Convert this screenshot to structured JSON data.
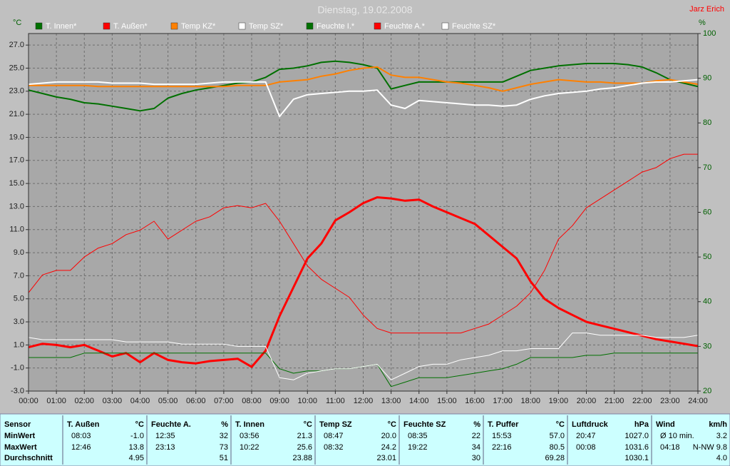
{
  "chart_data": {
    "type": "line",
    "title": "Dienstag, 19.02.2008",
    "annotation": "Jarz Erich",
    "y_label": "°C",
    "y2_label": "%",
    "x": [
      0,
      0.5,
      1,
      1.5,
      2,
      2.5,
      3,
      3.5,
      4,
      4.5,
      5,
      5.5,
      6,
      6.5,
      7,
      7.5,
      8,
      8.5,
      9,
      9.5,
      10,
      10.5,
      11,
      11.5,
      12,
      12.5,
      13,
      13.5,
      14,
      14.5,
      15,
      15.5,
      16,
      16.5,
      17,
      17.5,
      18,
      18.5,
      19,
      19.5,
      20,
      20.5,
      21,
      21.5,
      22,
      22.5,
      23,
      23.5,
      24
    ],
    "xlim": [
      0,
      24
    ],
    "xticks": [
      {
        "value": 0,
        "label": "00:00"
      },
      {
        "value": 1,
        "label": "01:00"
      },
      {
        "value": 2,
        "label": "02:00"
      },
      {
        "value": 3,
        "label": "03:00"
      },
      {
        "value": 4,
        "label": "04:00"
      },
      {
        "value": 5,
        "label": "05:00"
      },
      {
        "value": 6,
        "label": "06:00"
      },
      {
        "value": 7,
        "label": "07:00"
      },
      {
        "value": 8,
        "label": "08:00"
      },
      {
        "value": 9,
        "label": "09:00"
      },
      {
        "value": 10,
        "label": "10:00"
      },
      {
        "value": 11,
        "label": "11:00"
      },
      {
        "value": 12,
        "label": "12:00"
      },
      {
        "value": 13,
        "label": "13:00"
      },
      {
        "value": 14,
        "label": "14:00"
      },
      {
        "value": 15,
        "label": "15:00"
      },
      {
        "value": 16,
        "label": "16:00"
      },
      {
        "value": 17,
        "label": "17:00"
      },
      {
        "value": 18,
        "label": "18:00"
      },
      {
        "value": 19,
        "label": "19:00"
      },
      {
        "value": 20,
        "label": "20:00"
      },
      {
        "value": 21,
        "label": "21:00"
      },
      {
        "value": 22,
        "label": "22:00"
      },
      {
        "value": 23,
        "label": "23:00"
      },
      {
        "value": 24,
        "label": "24:00"
      }
    ],
    "ylim": [
      -3,
      28
    ],
    "yticks": [
      {
        "value": 27,
        "label": "27.0"
      },
      {
        "value": 25,
        "label": "25.0"
      },
      {
        "value": 23,
        "label": "23.0"
      },
      {
        "value": 21,
        "label": "21.0"
      },
      {
        "value": 19,
        "label": "19.0"
      },
      {
        "value": 17,
        "label": "17.0"
      },
      {
        "value": 15,
        "label": "15.0"
      },
      {
        "value": 13,
        "label": "13.0"
      },
      {
        "value": 11,
        "label": "11.0"
      },
      {
        "value": 9,
        "label": "9.0"
      },
      {
        "value": 7,
        "label": "7.0"
      },
      {
        "value": 5,
        "label": "5.0"
      },
      {
        "value": 3,
        "label": "3.0"
      },
      {
        "value": 1,
        "label": "1.0"
      },
      {
        "value": -1,
        "label": "-1.0"
      },
      {
        "value": -3,
        "label": "-3.0"
      }
    ],
    "y2lim": [
      20,
      100
    ],
    "y2ticks": [
      100,
      90,
      80,
      70,
      60,
      50,
      40,
      30,
      20
    ],
    "grid": true,
    "series": [
      {
        "name": "T. Innen*",
        "color": "#007000",
        "line_width": 2,
        "values": [
          23.1,
          22.8,
          22.5,
          22.3,
          22.0,
          21.9,
          21.7,
          21.5,
          21.3,
          21.5,
          22.4,
          22.8,
          23.1,
          23.3,
          23.5,
          23.7,
          23.8,
          24.2,
          24.9,
          25.0,
          25.2,
          25.5,
          25.6,
          25.5,
          25.3,
          25.0,
          23.2,
          23.5,
          23.8,
          23.8,
          23.8,
          23.8,
          23.8,
          23.8,
          23.8,
          24.3,
          24.8,
          25.0,
          25.2,
          25.3,
          25.4,
          25.4,
          25.4,
          25.3,
          25.1,
          24.6,
          24.0,
          23.7,
          23.4
        ]
      },
      {
        "name": "T. Außen*",
        "color": "#ff0000",
        "line_width": 3,
        "values": [
          0.8,
          1.1,
          1.0,
          0.8,
          1.0,
          0.5,
          0.0,
          0.3,
          -0.5,
          0.3,
          -0.3,
          -0.5,
          -0.6,
          -0.4,
          -0.3,
          -0.2,
          -0.9,
          0.5,
          3.5,
          6.0,
          8.5,
          9.8,
          11.8,
          12.5,
          13.3,
          13.8,
          13.7,
          13.5,
          13.6,
          13.0,
          12.5,
          12.0,
          11.5,
          10.5,
          9.5,
          8.5,
          6.5,
          5.0,
          4.2,
          3.6,
          3.0,
          2.7,
          2.4,
          2.1,
          1.8,
          1.5,
          1.3,
          1.1,
          0.9
        ]
      },
      {
        "name": "Temp KZ*",
        "color": "#ff8000",
        "line_width": 2,
        "values": [
          23.5,
          23.5,
          23.5,
          23.5,
          23.5,
          23.4,
          23.4,
          23.4,
          23.4,
          23.4,
          23.4,
          23.4,
          23.4,
          23.4,
          23.4,
          23.5,
          23.5,
          23.5,
          23.8,
          23.9,
          24.0,
          24.3,
          24.5,
          24.8,
          25.0,
          25.1,
          24.4,
          24.2,
          24.2,
          24.0,
          23.8,
          23.7,
          23.5,
          23.3,
          23.0,
          23.3,
          23.6,
          23.8,
          24.0,
          23.9,
          23.8,
          23.8,
          23.7,
          23.7,
          23.7,
          23.9,
          24.0,
          23.8,
          23.6
        ]
      },
      {
        "name": "Temp SZ*",
        "color": "#ffffff",
        "line_width": 2,
        "values": [
          23.6,
          23.7,
          23.8,
          23.8,
          23.8,
          23.8,
          23.7,
          23.7,
          23.7,
          23.6,
          23.6,
          23.6,
          23.6,
          23.7,
          23.8,
          23.8,
          23.8,
          23.8,
          20.8,
          22.3,
          22.7,
          22.8,
          22.9,
          23.0,
          23.0,
          23.1,
          21.8,
          21.5,
          22.2,
          22.1,
          22.0,
          21.9,
          21.8,
          21.8,
          21.7,
          21.8,
          22.3,
          22.6,
          22.8,
          22.9,
          23.0,
          23.2,
          23.3,
          23.5,
          23.7,
          23.8,
          23.8,
          23.9,
          24.0
        ]
      },
      {
        "name": "Feuchte I.*",
        "color": "#007000",
        "line_width": 1,
        "axis": "y2",
        "values": [
          27.5,
          27.5,
          27.5,
          27.5,
          28.5,
          28.5,
          28.5,
          28.5,
          28.5,
          28.5,
          28.5,
          28.5,
          28.5,
          28.5,
          28.5,
          28.5,
          28.5,
          28.5,
          25.0,
          24.0,
          24.5,
          24.5,
          25.0,
          25.0,
          25.5,
          26.0,
          21.0,
          22.0,
          23.0,
          23.0,
          23.0,
          23.5,
          24.0,
          24.5,
          25.0,
          26.0,
          27.5,
          27.5,
          27.5,
          27.5,
          28.0,
          28.0,
          28.5,
          28.5,
          28.5,
          28.5,
          28.5,
          28.5,
          28.5
        ]
      },
      {
        "name": "Feuchte A.*",
        "color": "#ff0000",
        "line_width": 1,
        "axis": "y2",
        "values": [
          42,
          46,
          47,
          47,
          50,
          52,
          53,
          55,
          56,
          58,
          54,
          56,
          58,
          59,
          61,
          61.5,
          61,
          62,
          58,
          53,
          48,
          45,
          43,
          41,
          37,
          34,
          33,
          33,
          33,
          33,
          33,
          33,
          34,
          35,
          37,
          39,
          42,
          47,
          54,
          57,
          61,
          63,
          65,
          67,
          69,
          70,
          72,
          73,
          73
        ]
      },
      {
        "name": "Feuchte SZ*",
        "color": "#ffffff",
        "line_width": 1,
        "axis": "y2",
        "values": [
          32,
          31.5,
          31.5,
          31.5,
          31.5,
          31.5,
          31.5,
          31,
          31,
          31,
          31,
          30.5,
          30.5,
          30.5,
          30.5,
          30,
          30,
          30,
          23,
          22.5,
          24,
          24.5,
          25,
          25,
          25.5,
          26,
          22.5,
          24,
          25.5,
          26,
          26,
          27,
          27.5,
          28,
          29,
          29,
          29.5,
          29.5,
          29.5,
          33,
          33,
          32.5,
          32.5,
          32.5,
          32.5,
          32,
          32,
          32,
          32.5
        ]
      }
    ]
  },
  "table": {
    "row_labels": [
      "Sensor",
      "MinWert",
      "MaxWert",
      "Durchschnitt"
    ],
    "groups": [
      {
        "name": "T. Außen",
        "unit": "°C",
        "min": [
          "08:03",
          "-1.0"
        ],
        "max": [
          "12:46",
          "13.8"
        ],
        "avg": "4.95"
      },
      {
        "name": "Feuchte A.",
        "unit": "%",
        "min": [
          "12:35",
          "32"
        ],
        "max": [
          "23:13",
          "73"
        ],
        "avg": "51"
      },
      {
        "name": "T. Innen",
        "unit": "°C",
        "min": [
          "03:56",
          "21.3"
        ],
        "max": [
          "10:22",
          "25.6"
        ],
        "avg": "23.88"
      },
      {
        "name": "Temp SZ",
        "unit": "°C",
        "min": [
          "08:47",
          "20.0"
        ],
        "max": [
          "08:32",
          "24.2"
        ],
        "avg": "23.01"
      },
      {
        "name": "Feuchte SZ",
        "unit": "%",
        "min": [
          "08:35",
          "22"
        ],
        "max": [
          "19:22",
          "34"
        ],
        "avg": "30"
      },
      {
        "name": "T. Puffer",
        "unit": "°C",
        "min": [
          "15:53",
          "57.0"
        ],
        "max": [
          "22:16",
          "80.5"
        ],
        "avg": "69.28"
      },
      {
        "name": "Luftdruck",
        "unit": "hPa",
        "min": [
          "20:47",
          "1027.0"
        ],
        "max": [
          "00:08",
          "1031.6"
        ],
        "avg": "1030.1"
      },
      {
        "name": "Wind",
        "unit": "km/h",
        "min": [
          "Ø 10 min.",
          "3.2"
        ],
        "max": [
          "04:18",
          "N-NW 9.8"
        ],
        "avg": "4.0"
      }
    ]
  }
}
